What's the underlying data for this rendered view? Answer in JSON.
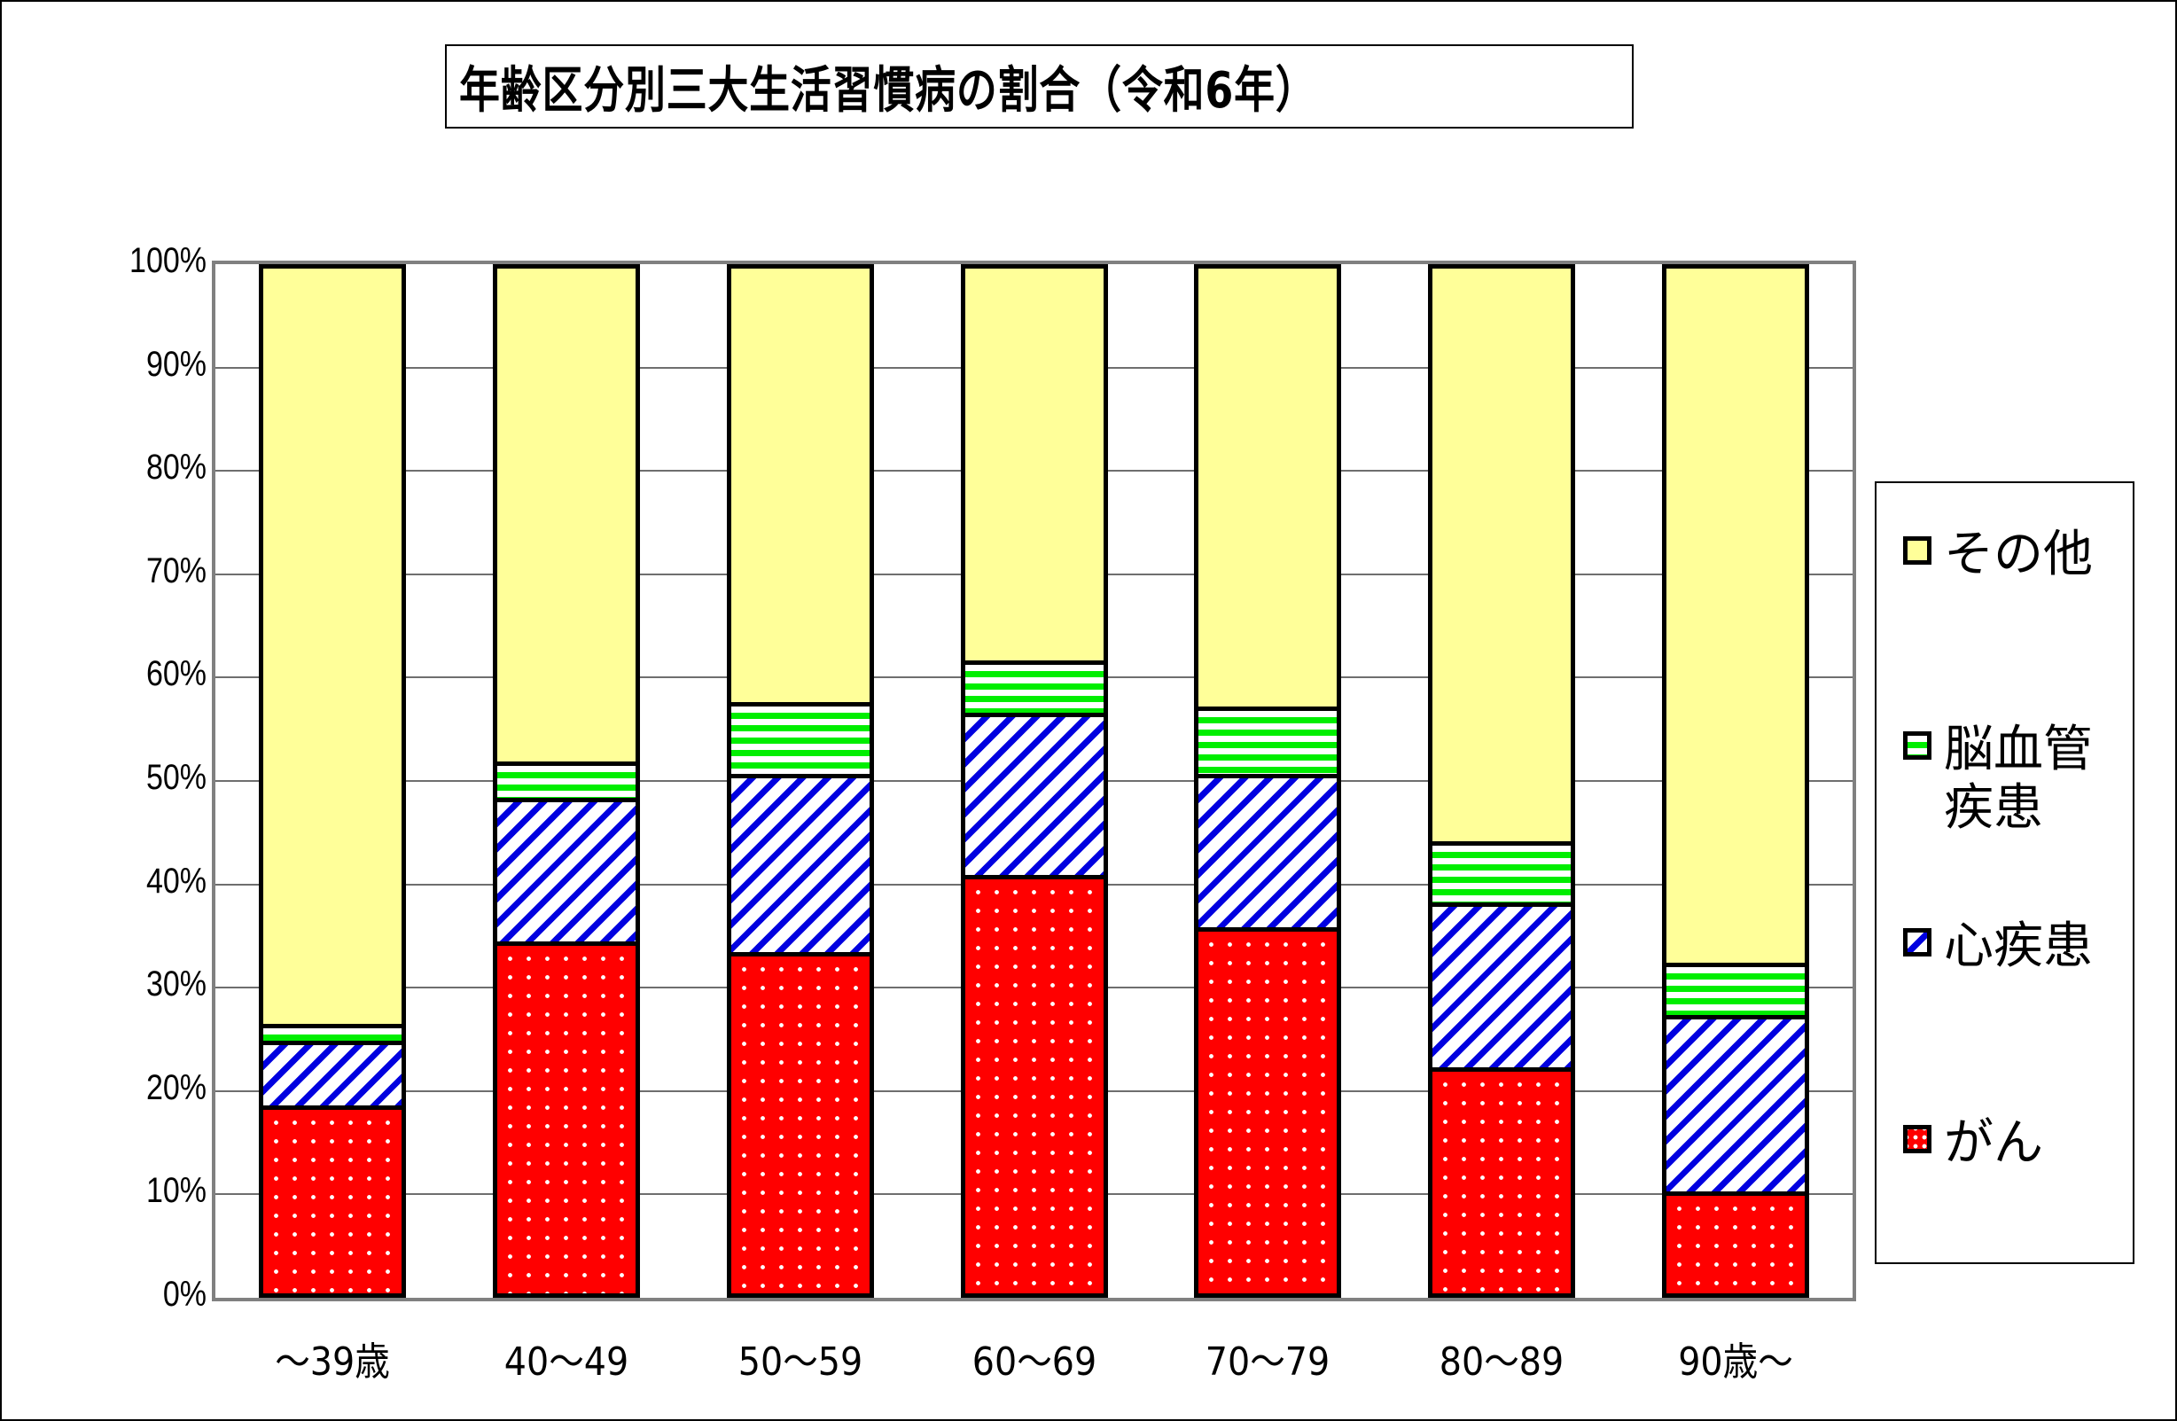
{
  "title": "年齢区分別三大生活習慣病の割合（令和6年）",
  "y_axis": {
    "ticks": [
      "0%",
      "10%",
      "20%",
      "30%",
      "40%",
      "50%",
      "60%",
      "70%",
      "80%",
      "90%",
      "100%"
    ]
  },
  "x_axis": {
    "categories": [
      "〜39歳",
      "40〜49",
      "50〜59",
      "60〜69",
      "70〜79",
      "80〜89",
      "90歳〜"
    ]
  },
  "legend": {
    "items": [
      {
        "label": "その他",
        "pattern": "solid-light-yellow"
      },
      {
        "label": "脳血管疾患",
        "pattern": "horizontal-stripes-green"
      },
      {
        "label": "心疾患",
        "pattern": "diagonal-stripes-blue"
      },
      {
        "label": "がん",
        "pattern": "dotted-red"
      }
    ]
  },
  "colors": {
    "cancer": "#ff0000",
    "heart_disease": "#0000e0",
    "cerebrovascular": "#00ee00",
    "other": "#ffff99",
    "gridline": "#6e6e6e",
    "plot_border": "#808080"
  },
  "chart_data": {
    "type": "bar",
    "stacked": true,
    "normalized_percent": true,
    "title": "年齢区分別三大生活習慣病の割合（令和6年）",
    "xlabel": "",
    "ylabel": "",
    "ylim": [
      0,
      100
    ],
    "grid": true,
    "legend_position": "right",
    "categories": [
      "〜39歳",
      "40〜49",
      "50〜59",
      "60〜69",
      "70〜79",
      "80〜89",
      "90歳〜"
    ],
    "series": [
      {
        "name": "がん",
        "values": [
          17.9,
          33.9,
          32.9,
          40.4,
          35.3,
          21.6,
          9.5
        ]
      },
      {
        "name": "心疾患",
        "values": [
          6.3,
          14.0,
          17.4,
          15.8,
          15.0,
          16.1,
          17.2
        ]
      },
      {
        "name": "脳血管疾患",
        "values": [
          1.7,
          3.6,
          7.0,
          5.1,
          6.5,
          6.0,
          5.1
        ]
      },
      {
        "name": "その他",
        "values": [
          74.1,
          48.5,
          42.7,
          38.7,
          43.2,
          56.3,
          68.2
        ]
      }
    ],
    "cumulative_tops": {
      "がん": [
        17.9,
        33.9,
        32.9,
        40.4,
        35.3,
        21.6,
        9.5
      ],
      "心疾患": [
        24.2,
        47.9,
        50.3,
        56.2,
        50.3,
        37.7,
        26.7
      ],
      "脳血管疾患": [
        25.9,
        51.5,
        57.3,
        61.3,
        56.8,
        43.7,
        31.8
      ],
      "その他": [
        100,
        100,
        100,
        100,
        100,
        100,
        100
      ]
    }
  }
}
